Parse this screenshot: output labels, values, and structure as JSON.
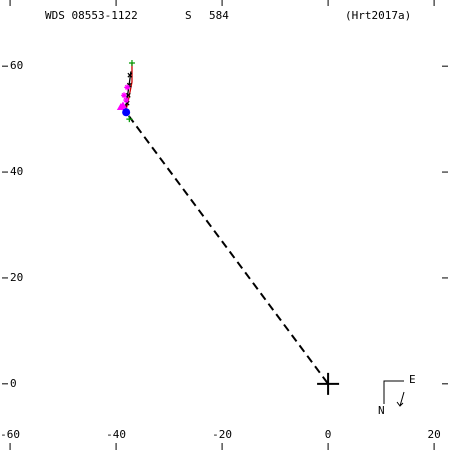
{
  "chart_data": {
    "type": "scatter",
    "title": "WDS 08553-1122",
    "discoverer": "S",
    "number": "584",
    "reference": "(Hrt2017a)",
    "xlim": [
      -61.9,
      23.0
    ],
    "ylim": [
      -12.5,
      72.5
    ],
    "xticks": [
      -60,
      -40,
      -20,
      0,
      20
    ],
    "yticks": [
      0,
      20,
      40,
      60
    ],
    "series": [
      {
        "marker": "dashed-line",
        "color": "#000000",
        "x": [
          -37.6,
          0
        ],
        "y": [
          50.6,
          0
        ]
      },
      {
        "marker": "line",
        "color": "#cc0000",
        "x": [
          -37.0,
          -37.0,
          -37.8,
          -38.2
        ],
        "y": [
          60.6,
          57.0,
          53.0,
          51.5
        ]
      },
      {
        "marker": "line",
        "color": "#000000",
        "x": [
          -37.2,
          -37.6,
          -38.0,
          -38.3
        ],
        "y": [
          59.0,
          56.0,
          53.5,
          51.3
        ]
      },
      {
        "marker": "cross",
        "color": "#000000",
        "x": [
          -37.4,
          -37.5,
          -37.7,
          -37.9
        ],
        "y": [
          58.3,
          56.4,
          54.5,
          53.0
        ]
      },
      {
        "marker": "star",
        "color": "#ff00ff",
        "x": [
          -38.5,
          -37.9,
          -38.1
        ],
        "y": [
          54.5,
          56.0,
          53.6
        ]
      },
      {
        "marker": "triangle",
        "color": "#ff00ff",
        "x": [
          -39.1,
          -38.7
        ],
        "y": [
          52.3,
          52.6
        ]
      },
      {
        "marker": "circle",
        "color": "#0000ff",
        "x": [
          -38.1
        ],
        "y": [
          51.3
        ]
      },
      {
        "marker": "plus",
        "color": "#009900",
        "x": [
          -37.0,
          -37.5
        ],
        "y": [
          60.6,
          50.0
        ]
      },
      {
        "marker": "big-plus",
        "color": "#000000",
        "x": [
          0
        ],
        "y": [
          0
        ]
      }
    ],
    "compass": {
      "north": "N",
      "east": "E"
    }
  }
}
